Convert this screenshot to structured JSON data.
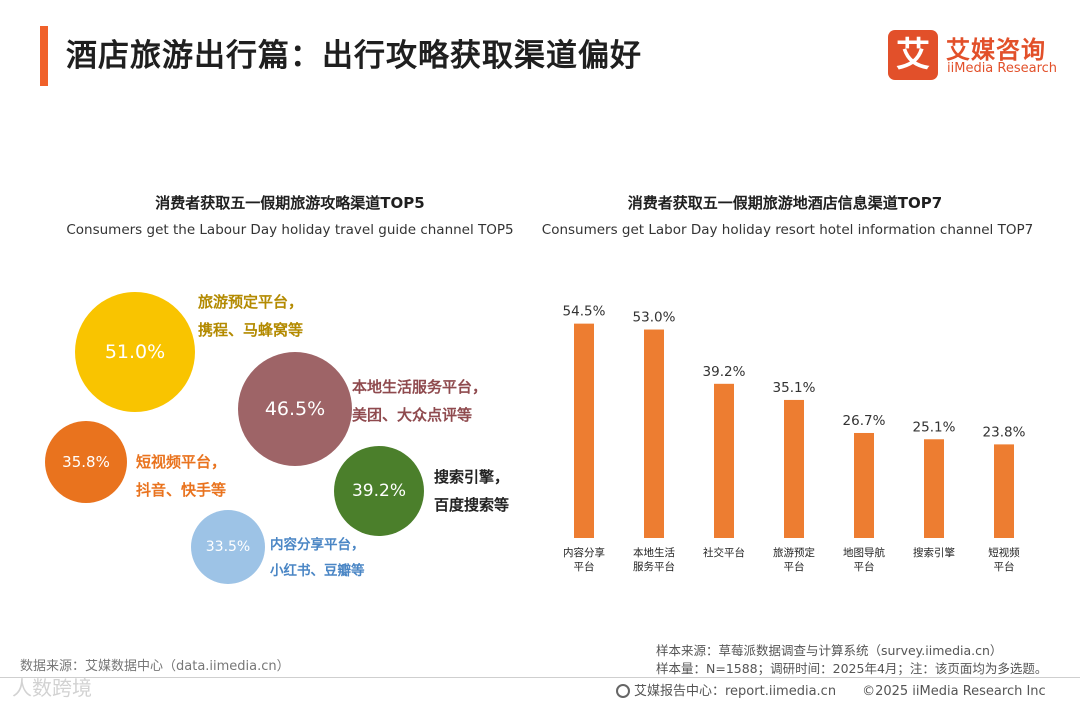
{
  "header": {
    "title": "酒店旅游出行篇：出行攻略获取渠道偏好",
    "logo_mark": "艾",
    "logo_cn": "艾媒咨询",
    "logo_en": "iiMedia Research"
  },
  "left_chart": {
    "title": "消费者获取五一假期旅游攻略渠道TOP5",
    "subtitle": "Consumers get the Labour Day holiday travel guide channel TOP5"
  },
  "right_chart": {
    "title": "消费者获取五一假期旅游地酒店信息渠道TOP7",
    "subtitle": "Consumers get Labor Day holiday resort hotel information channel TOP7"
  },
  "chart_data": [
    {
      "type": "bubble",
      "title": "消费者获取五一假期旅游攻略渠道TOP5",
      "subtitle": "Consumers get the Labour Day holiday travel guide channel TOP5",
      "bubbles": [
        {
          "value_label": "51.0%",
          "value": 51.0,
          "line1": "旅游预定平台，",
          "line2": "携程、马蜂窝等",
          "color": "#f9c400",
          "label_color": "#b38a00"
        },
        {
          "value_label": "46.5%",
          "value": 46.5,
          "line1": "本地生活服务平台，",
          "line2": "美团、大众点评等",
          "color": "#9e6467",
          "label_color": "#8f4a4e"
        },
        {
          "value_label": "39.2%",
          "value": 39.2,
          "line1": "搜索引擎，",
          "line2": "百度搜索等",
          "color": "#4b7f2b",
          "label_color": "#222222"
        },
        {
          "value_label": "35.8%",
          "value": 35.8,
          "line1": "短视频平台，",
          "line2": "抖音、快手等",
          "color": "#e9731e",
          "label_color": "#e9731e"
        },
        {
          "value_label": "33.5%",
          "value": 33.5,
          "line1": "内容分享平台，",
          "line2": "小红书、豆瓣等",
          "color": "#9dc3e6",
          "label_color": "#4a86c5"
        }
      ]
    },
    {
      "type": "bar",
      "title": "消费者获取五一假期旅游地酒店信息渠道TOP7",
      "subtitle": "Consumers get Labor Day holiday resort hotel information channel TOP7",
      "categories": [
        [
          "内容分享",
          "平台"
        ],
        [
          "本地生活",
          "服务平台"
        ],
        [
          "社交平台"
        ],
        [
          "旅游预定",
          "平台"
        ],
        [
          "地图导航",
          "平台"
        ],
        [
          "搜索引擎"
        ],
        [
          "短视频",
          "平台"
        ]
      ],
      "values": [
        54.5,
        53.0,
        39.2,
        35.1,
        26.7,
        25.1,
        23.8
      ],
      "value_labels": [
        "54.5%",
        "53.0%",
        "39.2%",
        "35.1%",
        "26.7%",
        "25.1%",
        "23.8%"
      ],
      "ylim": [
        0,
        60
      ],
      "color": "#ed7d31",
      "grid": false
    }
  ],
  "footer": {
    "data_source": "数据来源：艾媒数据中心（data.iimedia.cn）",
    "sample_source": "样本来源：草莓派数据调查与计算系统（survey.iimedia.cn）",
    "sample_size": "样本量：N=1588；调研时间：2025年4月；注：该页面均为多选题。",
    "report_center": "艾媒报告中心：report.iimedia.cn",
    "copyright": "©2025  iiMedia Research  Inc",
    "watermark": "人数跨境"
  }
}
